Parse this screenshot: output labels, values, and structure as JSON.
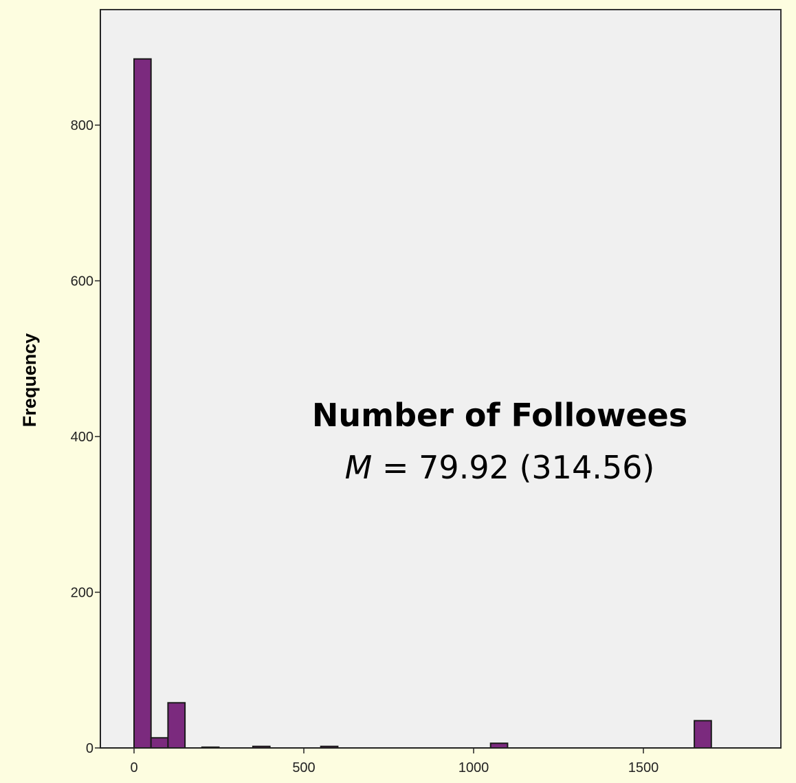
{
  "chart_data": {
    "type": "bar",
    "subtype": "histogram",
    "title": "",
    "xlabel": "",
    "ylabel": "Frequency",
    "xlim": [
      -100,
      1900
    ],
    "ylim": [
      0,
      950
    ],
    "bin_width": 50,
    "x_ticks": [
      {
        "value": 0,
        "label": "0"
      },
      {
        "value": 500,
        "label": "500"
      },
      {
        "value": 1000,
        "label": "1000"
      },
      {
        "value": 1500,
        "label": "1500"
      }
    ],
    "y_ticks": [
      {
        "value": 0,
        "label": "0"
      },
      {
        "value": 200,
        "label": "200"
      },
      {
        "value": 400,
        "label": "400"
      },
      {
        "value": 600,
        "label": "600"
      },
      {
        "value": 800,
        "label": "800"
      }
    ],
    "bins": [
      {
        "start": 0,
        "end": 50,
        "value": 885
      },
      {
        "start": 50,
        "end": 100,
        "value": 13
      },
      {
        "start": 100,
        "end": 150,
        "value": 58
      },
      {
        "start": 200,
        "end": 250,
        "value": 1
      },
      {
        "start": 350,
        "end": 400,
        "value": 2
      },
      {
        "start": 550,
        "end": 600,
        "value": 2
      },
      {
        "start": 1050,
        "end": 1100,
        "value": 6
      },
      {
        "start": 1650,
        "end": 1700,
        "value": 35
      }
    ],
    "annotation": {
      "title": "Number of Followees",
      "stat_symbol": "M",
      "stat_rest": " = 79.92 (314.56)"
    },
    "grid": false,
    "legend": "none",
    "colors": {
      "bar_fill": "#7b2a7e",
      "bar_stroke": "#1a1a1a",
      "plot_bg": "#f0f0f0",
      "page_bg": "#fdfde0"
    }
  }
}
